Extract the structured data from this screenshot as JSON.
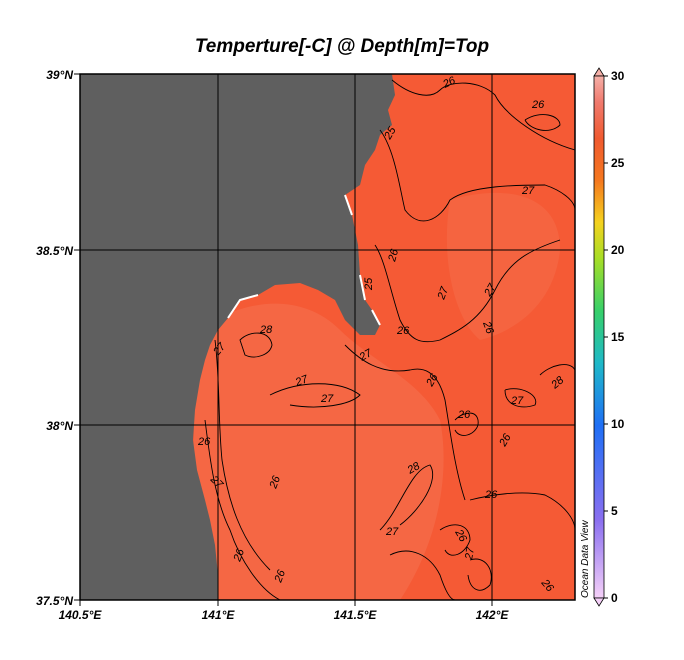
{
  "title": "Temperture[-C] @ Depth[m]=Top",
  "map": {
    "x_ticks": [
      "140.5°E",
      "141°E",
      "141.5°E",
      "142°E"
    ],
    "y_ticks": [
      "39°N",
      "38.5°N",
      "38°N",
      "37.5°N"
    ],
    "contour_labels": [
      "26",
      "26",
      "25",
      "27",
      "26",
      "25",
      "26",
      "27",
      "27",
      "26",
      "28",
      "27",
      "27",
      "27",
      "27",
      "26",
      "27",
      "26",
      "28",
      "26",
      "28",
      "26",
      "27",
      "26",
      "26",
      "27",
      "26",
      "26",
      "27"
    ],
    "colors": {
      "land": "#5f5f5f",
      "water": "#f55a35",
      "water_light": "#f56e4f"
    },
    "watermark": "Ocean Data View"
  },
  "colorbar": {
    "ticks": [
      "30",
      "25",
      "20",
      "15",
      "10",
      "5",
      "0"
    ]
  }
}
